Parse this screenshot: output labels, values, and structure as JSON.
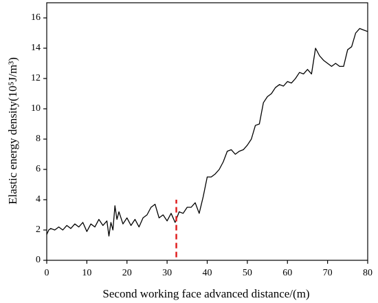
{
  "chart_data": {
    "type": "line",
    "xlabel": "Second working face advanced distance/(m)",
    "ylabel": "Elastic energy density(10⁵J/m³)",
    "x": [
      0,
      0.5,
      1,
      2,
      3,
      4,
      5,
      6,
      7,
      8,
      9,
      10,
      11,
      12,
      13,
      14,
      15,
      15.5,
      16,
      16.5,
      17,
      17.5,
      18,
      19,
      20,
      21,
      22,
      23,
      24,
      25,
      26,
      27,
      28,
      29,
      30,
      31,
      32,
      33,
      34,
      35,
      36,
      37,
      38,
      39,
      40,
      41,
      42,
      43,
      44,
      45,
      46,
      47,
      48,
      49,
      50,
      51,
      52,
      53,
      54,
      55,
      56,
      57,
      58,
      59,
      60,
      61,
      62,
      63,
      64,
      65,
      66,
      67,
      68,
      69,
      70,
      71,
      72,
      73,
      74,
      75,
      76,
      77,
      78,
      79,
      80
    ],
    "series": [
      {
        "name": "Elastic energy density",
        "color": "#000000",
        "values": [
          1.7,
          2.0,
          2.1,
          2.0,
          2.2,
          2.0,
          2.3,
          2.1,
          2.4,
          2.2,
          2.5,
          1.9,
          2.4,
          2.2,
          2.7,
          2.3,
          2.6,
          1.6,
          2.5,
          2.0,
          3.6,
          2.7,
          3.2,
          2.4,
          2.8,
          2.3,
          2.7,
          2.2,
          2.8,
          3.0,
          3.5,
          3.7,
          2.8,
          3.0,
          2.6,
          3.1,
          2.5,
          3.2,
          3.1,
          3.5,
          3.5,
          3.8,
          3.1,
          4.2,
          5.5,
          5.5,
          5.7,
          6.0,
          6.5,
          7.2,
          7.3,
          7.0,
          7.2,
          7.3,
          7.6,
          8.0,
          8.9,
          9.0,
          10.4,
          10.8,
          11.0,
          11.4,
          11.6,
          11.5,
          11.8,
          11.7,
          12.0,
          12.4,
          12.3,
          12.6,
          12.3,
          14.0,
          13.5,
          13.2,
          13.0,
          12.8,
          13.0,
          12.8,
          12.8,
          13.9,
          14.1,
          15.0,
          15.3,
          15.2,
          15.1
        ]
      }
    ],
    "vline": {
      "x": 32.3,
      "y": [
        0.2,
        4
      ],
      "color": "#e02020"
    },
    "xlim": [
      0,
      80
    ],
    "xticks": [
      0,
      10,
      20,
      30,
      40,
      50,
      60,
      70,
      80
    ],
    "ylim": [
      0,
      17
    ],
    "yticks": [
      0,
      2,
      4,
      6,
      8,
      10,
      12,
      14,
      16
    ]
  }
}
